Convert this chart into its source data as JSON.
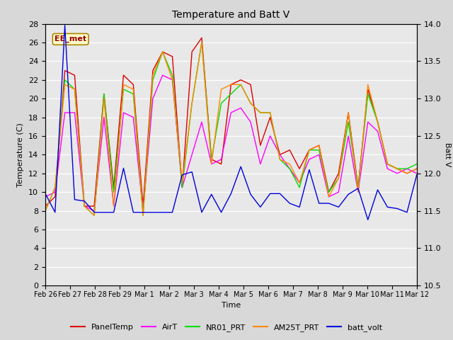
{
  "title": "Temperature and Batt V",
  "xlabel": "Time",
  "ylabel_left": "Temperature (C)",
  "ylabel_right": "Batt V",
  "annotation": "EE_met",
  "ylim_left": [
    0,
    28
  ],
  "ylim_right": [
    10.5,
    14.0
  ],
  "background_color": "#d8d8d8",
  "plot_bg_color": "#e8e8e8",
  "xtick_labels": [
    "Feb 26",
    "Feb 27",
    "Feb 28",
    "Feb 29",
    "Mar 1",
    "Mar 2",
    "Mar 3",
    "Mar 4",
    "Mar 5",
    "Mar 6",
    "Mar 7",
    "Mar 8",
    "Mar 9",
    "Mar 10",
    "Mar 11",
    "Mar 12"
  ],
  "yticks_left": [
    0,
    2,
    4,
    6,
    8,
    10,
    12,
    14,
    16,
    18,
    20,
    22,
    24,
    26,
    28
  ],
  "yticks_right": [
    10.5,
    11.0,
    11.5,
    12.0,
    12.5,
    13.0,
    13.5,
    14.0
  ],
  "series": {
    "PanelTemp": {
      "color": "#dd0000",
      "values": [
        8.5,
        9.5,
        23.0,
        22.5,
        8.5,
        8.5,
        20.5,
        10.5,
        22.5,
        21.5,
        8.5,
        23.0,
        25.0,
        24.5,
        10.5,
        25.0,
        26.5,
        13.5,
        13.0,
        21.5,
        22.0,
        21.5,
        15.0,
        18.0,
        14.0,
        14.5,
        12.5,
        14.5,
        15.0,
        10.0,
        12.0,
        18.5,
        10.5,
        21.0,
        17.5,
        13.0,
        12.5,
        12.0,
        12.5
      ]
    },
    "AirT": {
      "color": "#ff00ff",
      "values": [
        9.5,
        10.0,
        18.5,
        18.5,
        8.5,
        8.0,
        18.0,
        8.5,
        18.5,
        18.0,
        8.0,
        20.0,
        22.5,
        22.0,
        10.5,
        14.0,
        17.5,
        13.0,
        13.5,
        18.5,
        19.0,
        17.5,
        13.0,
        16.0,
        14.0,
        12.5,
        11.0,
        13.5,
        14.0,
        9.5,
        10.0,
        16.0,
        10.0,
        17.5,
        16.5,
        12.5,
        12.0,
        12.5,
        12.0
      ]
    },
    "NR01_PRT": {
      "color": "#00dd00",
      "values": [
        8.0,
        10.5,
        22.0,
        21.0,
        8.5,
        7.5,
        20.5,
        10.0,
        21.0,
        20.5,
        7.5,
        22.0,
        25.0,
        22.5,
        10.5,
        19.5,
        26.0,
        13.5,
        19.5,
        20.5,
        21.5,
        19.5,
        18.5,
        18.5,
        13.5,
        12.5,
        10.5,
        14.5,
        14.5,
        10.0,
        11.5,
        17.5,
        10.5,
        20.5,
        17.5,
        13.0,
        12.5,
        12.5,
        13.0
      ]
    },
    "AM25T_PRT": {
      "color": "#ff8800",
      "values": [
        8.0,
        10.5,
        21.5,
        21.0,
        8.5,
        7.5,
        20.0,
        8.5,
        21.5,
        21.0,
        7.5,
        22.5,
        25.0,
        22.0,
        11.0,
        19.5,
        26.0,
        13.0,
        21.0,
        21.5,
        21.5,
        19.5,
        18.5,
        18.5,
        13.5,
        13.0,
        11.0,
        14.5,
        15.0,
        9.5,
        11.5,
        18.5,
        10.0,
        21.5,
        17.5,
        13.0,
        12.5,
        12.0,
        12.5
      ]
    },
    "batt_volt": {
      "color": "#0000dd",
      "values": [
        11.73,
        11.48,
        13.98,
        11.65,
        11.63,
        11.48,
        11.48,
        11.48,
        12.07,
        11.48,
        11.48,
        11.48,
        11.48,
        11.48,
        11.98,
        12.02,
        11.48,
        11.72,
        11.48,
        11.73,
        12.09,
        11.72,
        11.55,
        11.73,
        11.73,
        11.6,
        11.55,
        12.05,
        11.6,
        11.6,
        11.55,
        11.72,
        11.8,
        11.38,
        11.78,
        11.55,
        11.53,
        11.48,
        11.98
      ]
    }
  },
  "legend": [
    {
      "label": "PanelTemp",
      "color": "#dd0000"
    },
    {
      "label": "AirT",
      "color": "#ff00ff"
    },
    {
      "label": "NR01_PRT",
      "color": "#00dd00"
    },
    {
      "label": "AM25T_PRT",
      "color": "#ff8800"
    },
    {
      "label": "batt_volt",
      "color": "#0000dd"
    }
  ]
}
